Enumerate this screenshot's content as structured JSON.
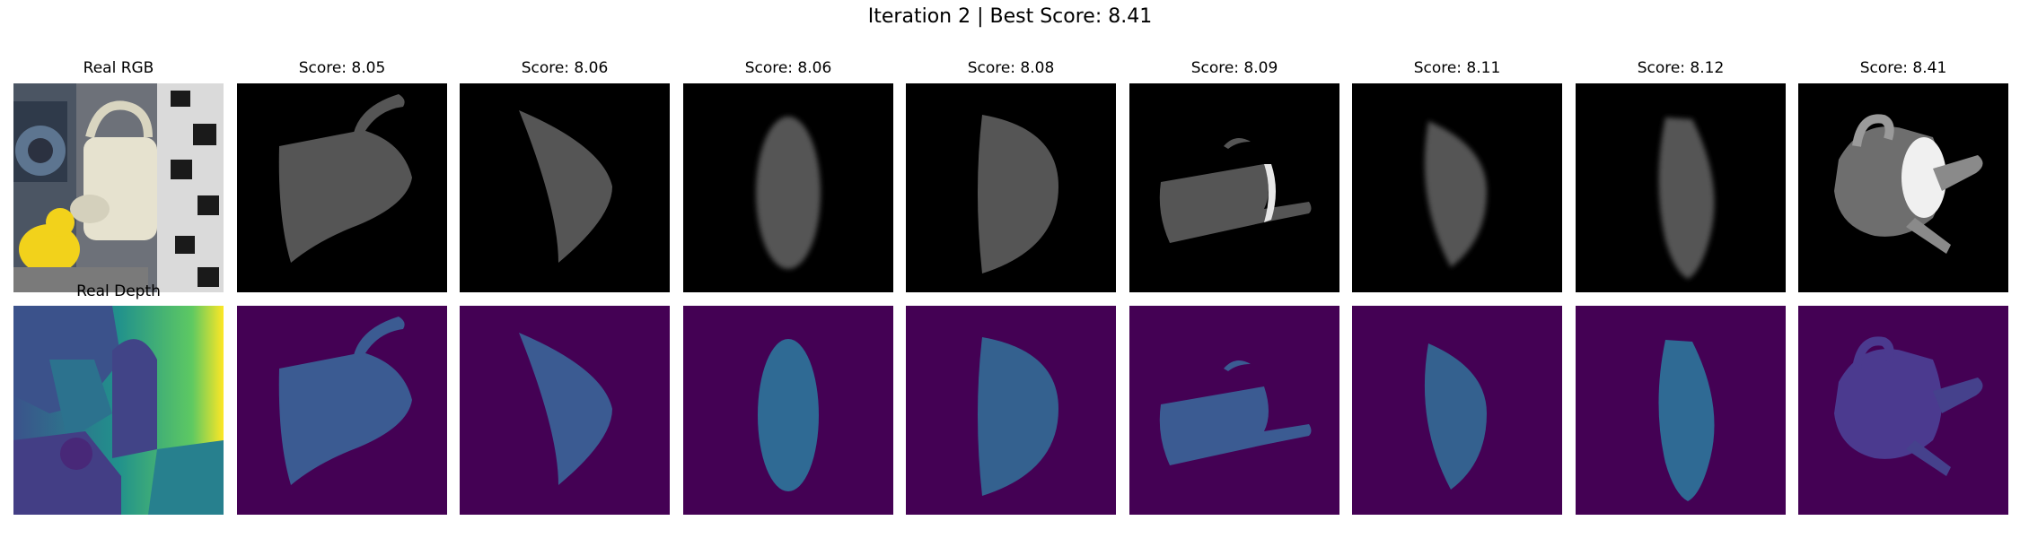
{
  "title": "Iteration 2 | Best Score: 8.41",
  "real_rgb_title": "Real RGB",
  "real_depth_label": "Real Depth",
  "candidates": [
    {
      "score_label": "Score: 8.05"
    },
    {
      "score_label": "Score: 8.06"
    },
    {
      "score_label": "Score: 8.06"
    },
    {
      "score_label": "Score: 8.08"
    },
    {
      "score_label": "Score: 8.09"
    },
    {
      "score_label": "Score: 8.11"
    },
    {
      "score_label": "Score: 8.12"
    },
    {
      "score_label": "Score: 8.41"
    }
  ],
  "colors": {
    "render_bg": "#000000",
    "render_fg": "#555555",
    "depth_bg": "#440154",
    "depth_fg": "#3b5b92"
  }
}
